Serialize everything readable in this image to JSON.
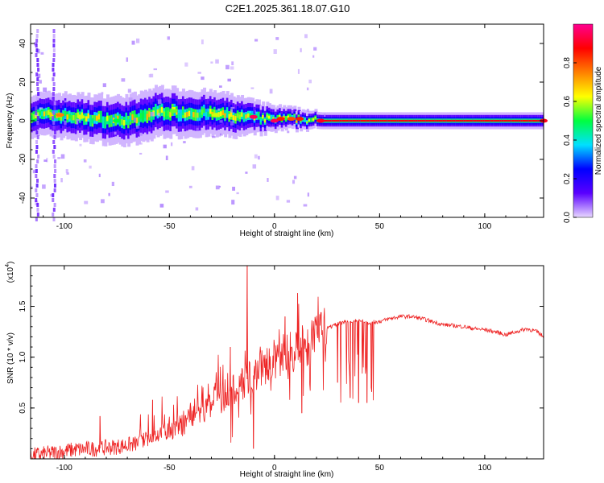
{
  "title": "C2E1.2025.361.18.07.G10",
  "chart_data": [
    {
      "type": "heatmap",
      "title": "C2E1.2025.361.18.07.G10",
      "xlabel": "Height of straight line (km)",
      "ylabel": "Frequency (Hz)",
      "xlim": [
        -116,
        128
      ],
      "ylim": [
        -50,
        50
      ],
      "xticks": [
        -100,
        -50,
        0,
        50,
        100
      ],
      "xtick_labels": [
        "-100",
        "-50",
        "0",
        "50",
        "100"
      ],
      "yticks": [
        -40,
        -20,
        0,
        20,
        40
      ],
      "ytick_labels": [
        "-40",
        "-20",
        "0",
        "20",
        "40"
      ],
      "colorbar": {
        "label": "Normalized spectral amplitude",
        "range": [
          0,
          1
        ],
        "ticks": [
          0.0,
          0.2,
          0.4,
          0.6,
          0.8
        ],
        "tick_labels": [
          "0.0",
          "0.2",
          "0.4",
          "0.6",
          "0.8"
        ],
        "colors": [
          "#e8d8ff",
          "#5a00ff",
          "#0000ff",
          "#00e0ff",
          "#00ff40",
          "#ffff00",
          "#ff8000",
          "#ff0000",
          "#ff0090"
        ]
      },
      "band_center_hz": [
        {
          "x": -115,
          "y": 3
        },
        {
          "x": -105,
          "y": 3
        },
        {
          "x": -95,
          "y": 2
        },
        {
          "x": -85,
          "y": 1
        },
        {
          "x": -75,
          "y": 0
        },
        {
          "x": -65,
          "y": 1
        },
        {
          "x": -55,
          "y": 5
        },
        {
          "x": -45,
          "y": 4
        },
        {
          "x": -35,
          "y": 4
        },
        {
          "x": -25,
          "y": 3
        },
        {
          "x": -15,
          "y": 2
        },
        {
          "x": -5,
          "y": 1
        },
        {
          "x": 5,
          "y": 1
        },
        {
          "x": 15,
          "y": 0.5
        },
        {
          "x": 22,
          "y": 0
        },
        {
          "x": 128,
          "y": 0
        }
      ],
      "band_halfwidth_hz": [
        {
          "x": -115,
          "y": 5
        },
        {
          "x": -60,
          "y": 6
        },
        {
          "x": -20,
          "y": 5
        },
        {
          "x": 0,
          "y": 3
        },
        {
          "x": 20,
          "y": 2
        },
        {
          "x": 128,
          "y": 2
        }
      ],
      "peak_amplitude_points": [
        {
          "x": -102,
          "y": 3,
          "v": 0.75
        },
        {
          "x": -92,
          "y": 2,
          "v": 0.6
        },
        {
          "x": -75,
          "y": 0,
          "v": 0.5
        },
        {
          "x": -48,
          "y": 5,
          "v": 0.55
        },
        {
          "x": -28,
          "y": 3,
          "v": 0.6
        },
        {
          "x": -10,
          "y": 2,
          "v": 0.95
        },
        {
          "x": 0,
          "y": 0,
          "v": 0.95
        },
        {
          "x": 3,
          "y": 1,
          "v": 0.85
        },
        {
          "x": 8,
          "y": 1,
          "v": 0.8
        },
        {
          "x": 12,
          "y": 1,
          "v": 0.85
        },
        {
          "x": 22,
          "y": 0,
          "v": 0.9
        },
        {
          "x": 128,
          "y": 0,
          "v": 0.9
        }
      ]
    },
    {
      "type": "line",
      "xlabel": "Height of straight line (km)",
      "ylabel": "SNR (10 * v/v)",
      "y_multiplier_label": "(x10",
      "y_multiplier_exponent": "4",
      "xlim": [
        -116,
        128
      ],
      "ylim": [
        0,
        1.9
      ],
      "xticks": [
        -100,
        -50,
        0,
        50,
        100
      ],
      "xtick_labels": [
        "-100",
        "-50",
        "0",
        "50",
        "100"
      ],
      "yticks": [
        0.5,
        1.0,
        1.5
      ],
      "ytick_labels": [
        "0.5",
        "1.0",
        "1.5"
      ],
      "color": "#ee2222",
      "series": [
        {
          "name": "SNR",
          "x": [
            -116,
            -105,
            -95,
            -85,
            -75,
            -65,
            -60,
            -55,
            -50,
            -45,
            -40,
            -35,
            -30,
            -25,
            -20,
            -15,
            -12,
            -10,
            -5,
            0,
            5,
            10,
            15,
            20,
            25,
            30,
            35,
            40,
            45,
            50,
            55,
            60,
            65,
            70,
            75,
            80,
            85,
            90,
            95,
            100,
            105,
            110,
            115,
            120,
            125,
            128
          ],
          "y": [
            0.03,
            0.06,
            0.09,
            0.1,
            0.12,
            0.15,
            0.2,
            0.25,
            0.28,
            0.32,
            0.38,
            0.45,
            0.52,
            0.6,
            0.68,
            0.75,
            0.8,
            0.82,
            0.9,
            0.98,
            1.02,
            1.06,
            1.12,
            1.2,
            1.28,
            1.33,
            1.35,
            1.36,
            1.34,
            1.35,
            1.38,
            1.4,
            1.4,
            1.38,
            1.35,
            1.32,
            1.31,
            1.3,
            1.28,
            1.27,
            1.25,
            1.22,
            1.25,
            1.28,
            1.25,
            1.2
          ]
        }
      ],
      "notable_spikes": [
        {
          "x": -83,
          "y": 0.42
        },
        {
          "x": -58,
          "y": 0.58
        },
        {
          "x": -40,
          "y": 0.55
        },
        {
          "x": -21,
          "y": 1.1
        },
        {
          "x": -13,
          "y": 1.9
        },
        {
          "x": 5,
          "y": 1.4
        },
        {
          "x": 11,
          "y": 1.63
        }
      ],
      "dropouts": [
        {
          "x": -10,
          "y": 0.1
        },
        {
          "x": 13,
          "y": 0.45
        },
        {
          "x": 30,
          "y": 0.75
        },
        {
          "x": 36,
          "y": 0.6
        },
        {
          "x": 40,
          "y": 0.55
        },
        {
          "x": 44,
          "y": 0.55
        },
        {
          "x": 46,
          "y": 0.7
        }
      ]
    }
  ]
}
